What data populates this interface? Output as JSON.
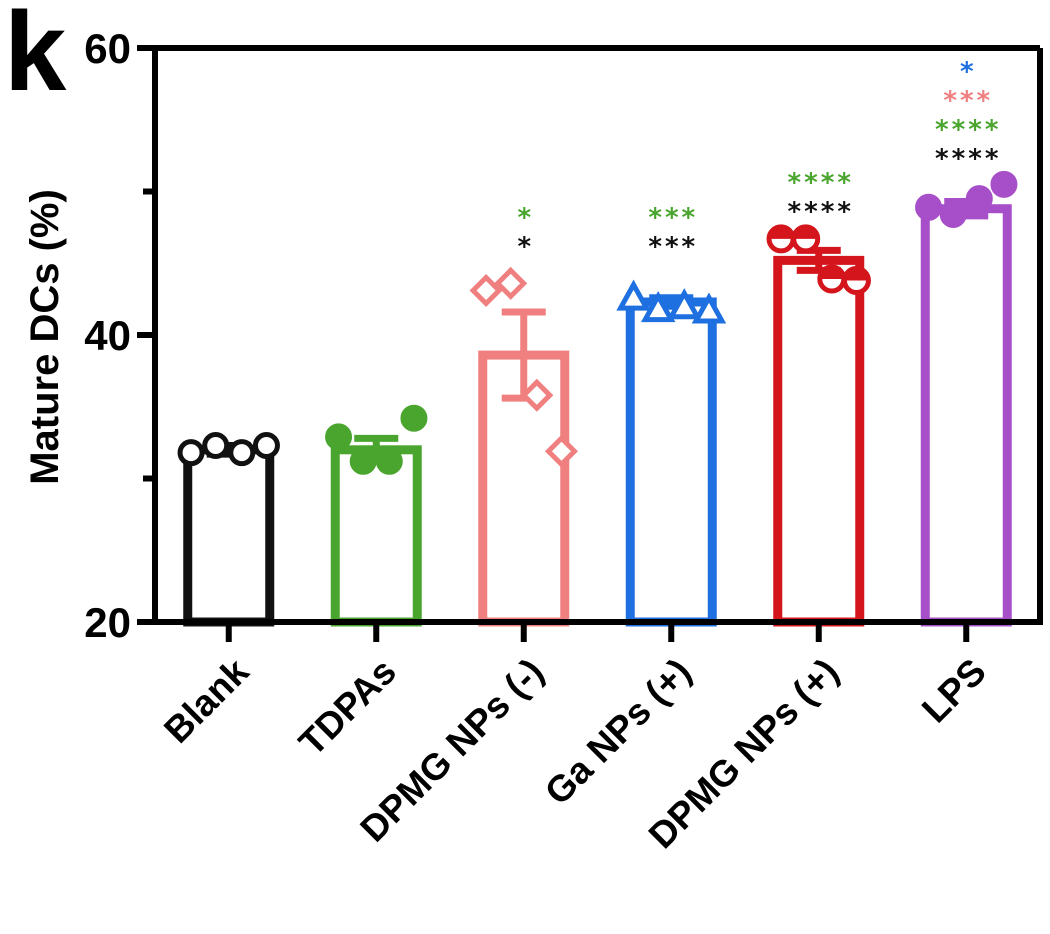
{
  "panel_label": "k",
  "chart_data": {
    "type": "bar",
    "ylabel": "Mature DCs (%)",
    "ylim": [
      20,
      60
    ],
    "yticks": [
      20,
      40,
      60
    ],
    "grid": false,
    "categories": [
      "Blank",
      "TDPAs",
      "DPMG NPs (-)",
      "Ga NPs (+)",
      "DPMG NPs (+)",
      "LPS"
    ],
    "colors": [
      "#111111",
      "#4aa52e",
      "#f08080",
      "#1e6fe0",
      "#d4151b",
      "#a64fc8"
    ],
    "markers": [
      "circle",
      "circle",
      "diamond",
      "triangle",
      "half-circle",
      "circle"
    ],
    "means": [
      32.0,
      32.0,
      38.6,
      42.3,
      45.2,
      48.8
    ],
    "sem": [
      0.3,
      0.8,
      3.0,
      0.3,
      0.7,
      0.5
    ],
    "points": [
      [
        31.8,
        32.3,
        31.8,
        32.3
      ],
      [
        32.9,
        31.2,
        31.2,
        34.2
      ],
      [
        43.1,
        43.6,
        35.8,
        31.9
      ],
      [
        42.6,
        41.8,
        42.0,
        41.7
      ],
      [
        46.7,
        46.7,
        43.9,
        43.8
      ],
      [
        48.9,
        48.4,
        49.5,
        50.5
      ]
    ],
    "significance": [
      {
        "category": "DPMG NPs (-)",
        "rows": [
          {
            "text": "*",
            "color": "#4aa52e"
          },
          {
            "text": "*",
            "color": "#111111"
          }
        ]
      },
      {
        "category": "Ga NPs (+)",
        "rows": [
          {
            "text": "***",
            "color": "#4aa52e"
          },
          {
            "text": "***",
            "color": "#111111"
          }
        ]
      },
      {
        "category": "DPMG NPs (+)",
        "rows": [
          {
            "text": "****",
            "color": "#4aa52e"
          },
          {
            "text": "****",
            "color": "#111111"
          }
        ]
      },
      {
        "category": "LPS",
        "rows": [
          {
            "text": "*",
            "color": "#1e6fe0"
          },
          {
            "text": "***",
            "color": "#f08080"
          },
          {
            "text": "****",
            "color": "#4aa52e"
          },
          {
            "text": "****",
            "color": "#111111"
          }
        ]
      }
    ]
  }
}
